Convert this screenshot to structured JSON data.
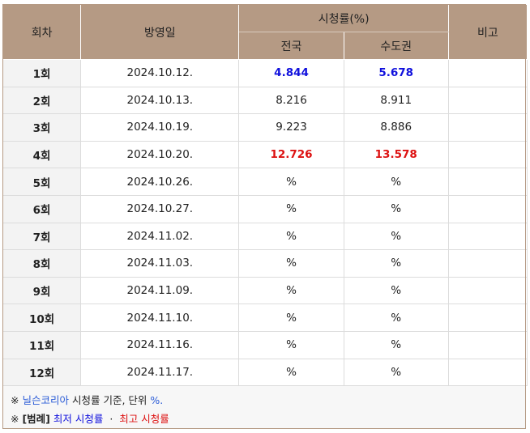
{
  "headers": {
    "episode": "회차",
    "air_date": "방영일",
    "rating_group": "시청률(%)",
    "nationwide": "전국",
    "capital": "수도권",
    "note": "비고"
  },
  "rows": [
    {
      "episode": "1회",
      "date": "2024.10.12.",
      "nationwide": "4.844",
      "capital": "5.678",
      "style": "low"
    },
    {
      "episode": "2회",
      "date": "2024.10.13.",
      "nationwide": "8.216",
      "capital": "8.911",
      "style": ""
    },
    {
      "episode": "3회",
      "date": "2024.10.19.",
      "nationwide": "9.223",
      "capital": "8.886",
      "style": ""
    },
    {
      "episode": "4회",
      "date": "2024.10.20.",
      "nationwide": "12.726",
      "capital": "13.578",
      "style": "high"
    },
    {
      "episode": "5회",
      "date": "2024.10.26.",
      "nationwide": "%",
      "capital": "%",
      "style": ""
    },
    {
      "episode": "6회",
      "date": "2024.10.27.",
      "nationwide": "%",
      "capital": "%",
      "style": ""
    },
    {
      "episode": "7회",
      "date": "2024.11.02.",
      "nationwide": "%",
      "capital": "%",
      "style": ""
    },
    {
      "episode": "8회",
      "date": "2024.11.03.",
      "nationwide": "%",
      "capital": "%",
      "style": ""
    },
    {
      "episode": "9회",
      "date": "2024.11.09.",
      "nationwide": "%",
      "capital": "%",
      "style": ""
    },
    {
      "episode": "10회",
      "date": "2024.11.10.",
      "nationwide": "%",
      "capital": "%",
      "style": ""
    },
    {
      "episode": "11회",
      "date": "2024.11.16.",
      "nationwide": "%",
      "capital": "%",
      "style": ""
    },
    {
      "episode": "12회",
      "date": "2024.11.17.",
      "nationwide": "%",
      "capital": "%",
      "style": ""
    }
  ],
  "notes": {
    "line1_mark": "※",
    "line1_source": "닐슨코리아",
    "line1_text": "시청률 기준, 단위",
    "line1_unit": "%.",
    "line2_mark": "※",
    "line2_label": "[범례]",
    "line2_low": "최저 시청률",
    "line2_sep": "·",
    "line2_high": "최고 시청률"
  },
  "colors": {
    "header_bg": "#b59a84",
    "low": "#1010dd",
    "high": "#dd1111",
    "link": "#2a5bd7"
  }
}
